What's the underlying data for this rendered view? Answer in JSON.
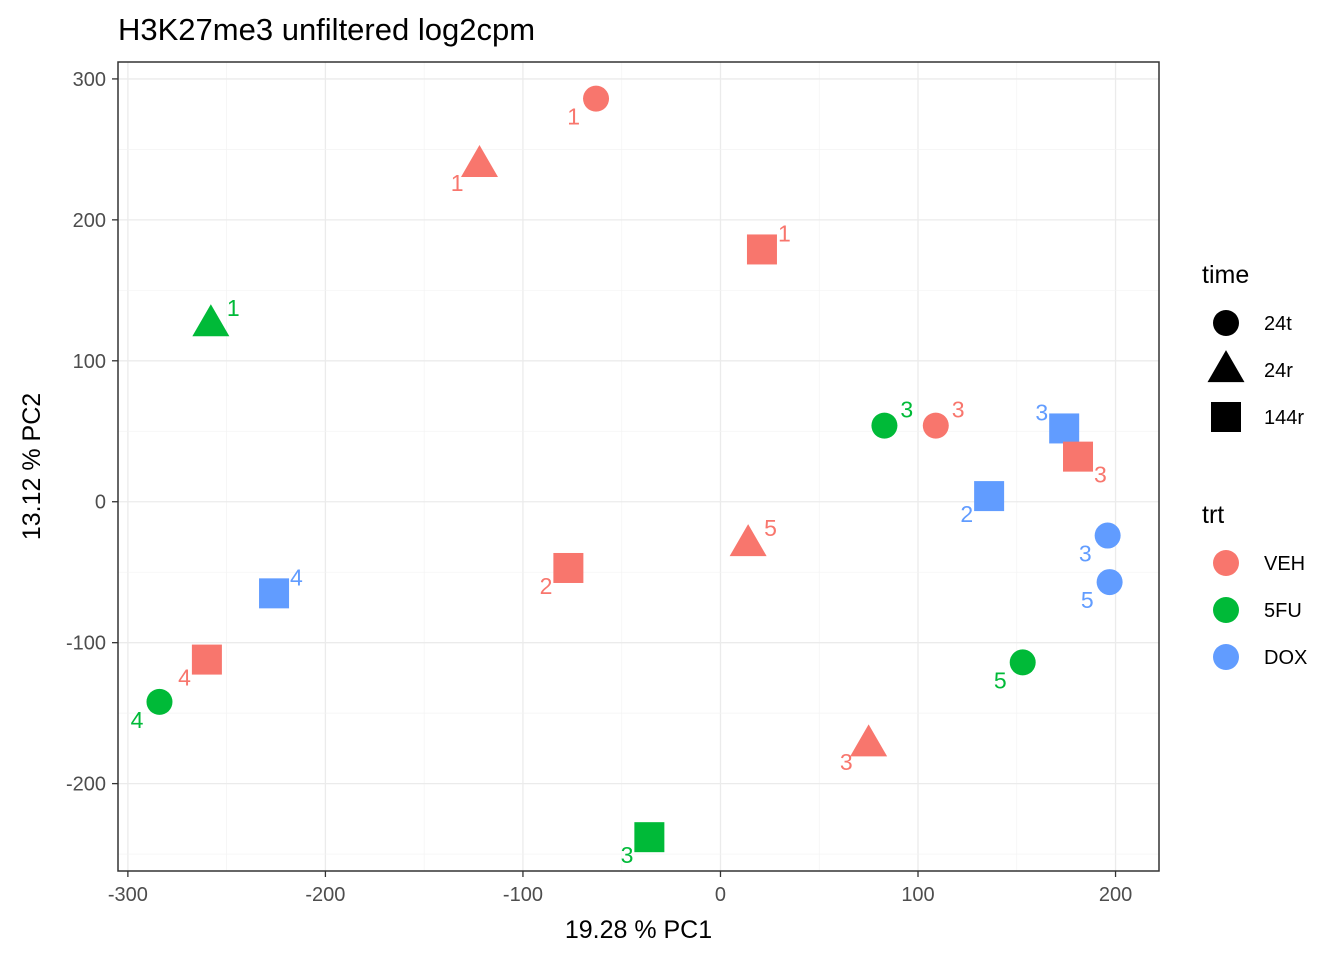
{
  "chart_data": {
    "type": "scatter",
    "title": "H3K27me3 unfiltered log2cpm",
    "xlabel": "19.28 % PC1",
    "ylabel": "13.12 % PC2",
    "xlim": [
      -305,
      222
    ],
    "ylim": [
      -262,
      312
    ],
    "x_ticks": [
      -300,
      -200,
      -100,
      0,
      100,
      200
    ],
    "y_ticks": [
      -200,
      -100,
      0,
      100,
      200,
      300
    ],
    "grid": true,
    "legend_position": "right",
    "legends": [
      {
        "title": "time",
        "entries": [
          {
            "label": "24t",
            "shape": "circle"
          },
          {
            "label": "24r",
            "shape": "triangle"
          },
          {
            "label": "144r",
            "shape": "square"
          }
        ]
      },
      {
        "title": "trt",
        "entries": [
          {
            "label": "VEH",
            "color": "#F8766D"
          },
          {
            "label": "5FU",
            "color": "#00BA38"
          },
          {
            "label": "DOX",
            "color": "#619CFF"
          }
        ]
      }
    ],
    "points": [
      {
        "x": -63,
        "y": 286,
        "time": "24t",
        "trt": "VEH",
        "label": "1",
        "label_pos": "bl"
      },
      {
        "x": -122,
        "y": 239,
        "time": "24r",
        "trt": "VEH",
        "label": "1",
        "label_pos": "bl"
      },
      {
        "x": 21,
        "y": 179,
        "time": "144r",
        "trt": "VEH",
        "label": "1",
        "label_pos": "tr"
      },
      {
        "x": -258,
        "y": 126,
        "time": "24r",
        "trt": "5FU",
        "label": "1",
        "label_pos": "tr"
      },
      {
        "x": 83,
        "y": 54,
        "time": "24t",
        "trt": "5FU",
        "label": "3",
        "label_pos": "tr"
      },
      {
        "x": 109,
        "y": 54,
        "time": "24t",
        "trt": "VEH",
        "label": "3",
        "label_pos": "tr"
      },
      {
        "x": 174,
        "y": 52,
        "time": "144r",
        "trt": "DOX",
        "label": "3",
        "label_pos": "tl"
      },
      {
        "x": 181,
        "y": 32,
        "time": "144r",
        "trt": "VEH",
        "label": "3",
        "label_pos": "br"
      },
      {
        "x": 136,
        "y": 4,
        "time": "144r",
        "trt": "DOX",
        "label": "2",
        "label_pos": "bl"
      },
      {
        "x": 196,
        "y": -24,
        "time": "24t",
        "trt": "DOX",
        "label": "3",
        "label_pos": "bl"
      },
      {
        "x": 197,
        "y": -57,
        "time": "24t",
        "trt": "DOX",
        "label": "5",
        "label_pos": "bl"
      },
      {
        "x": 14,
        "y": -30,
        "time": "24r",
        "trt": "VEH",
        "label": "5",
        "label_pos": "tr"
      },
      {
        "x": -77,
        "y": -47,
        "time": "144r",
        "trt": "VEH",
        "label": "2",
        "label_pos": "bl"
      },
      {
        "x": -226,
        "y": -65,
        "time": "144r",
        "trt": "DOX",
        "label": "4",
        "label_pos": "tr"
      },
      {
        "x": -260,
        "y": -112,
        "time": "144r",
        "trt": "VEH",
        "label": "4",
        "label_pos": "bl"
      },
      {
        "x": -284,
        "y": -142,
        "time": "24t",
        "trt": "5FU",
        "label": "4",
        "label_pos": "bl"
      },
      {
        "x": 153,
        "y": -114,
        "time": "24t",
        "trt": "5FU",
        "label": "5",
        "label_pos": "bl"
      },
      {
        "x": 75,
        "y": -172,
        "time": "24r",
        "trt": "VEH",
        "label": "3",
        "label_pos": "bl"
      },
      {
        "x": -36,
        "y": -238,
        "time": "144r",
        "trt": "5FU",
        "label": "3",
        "label_pos": "bl"
      }
    ]
  }
}
